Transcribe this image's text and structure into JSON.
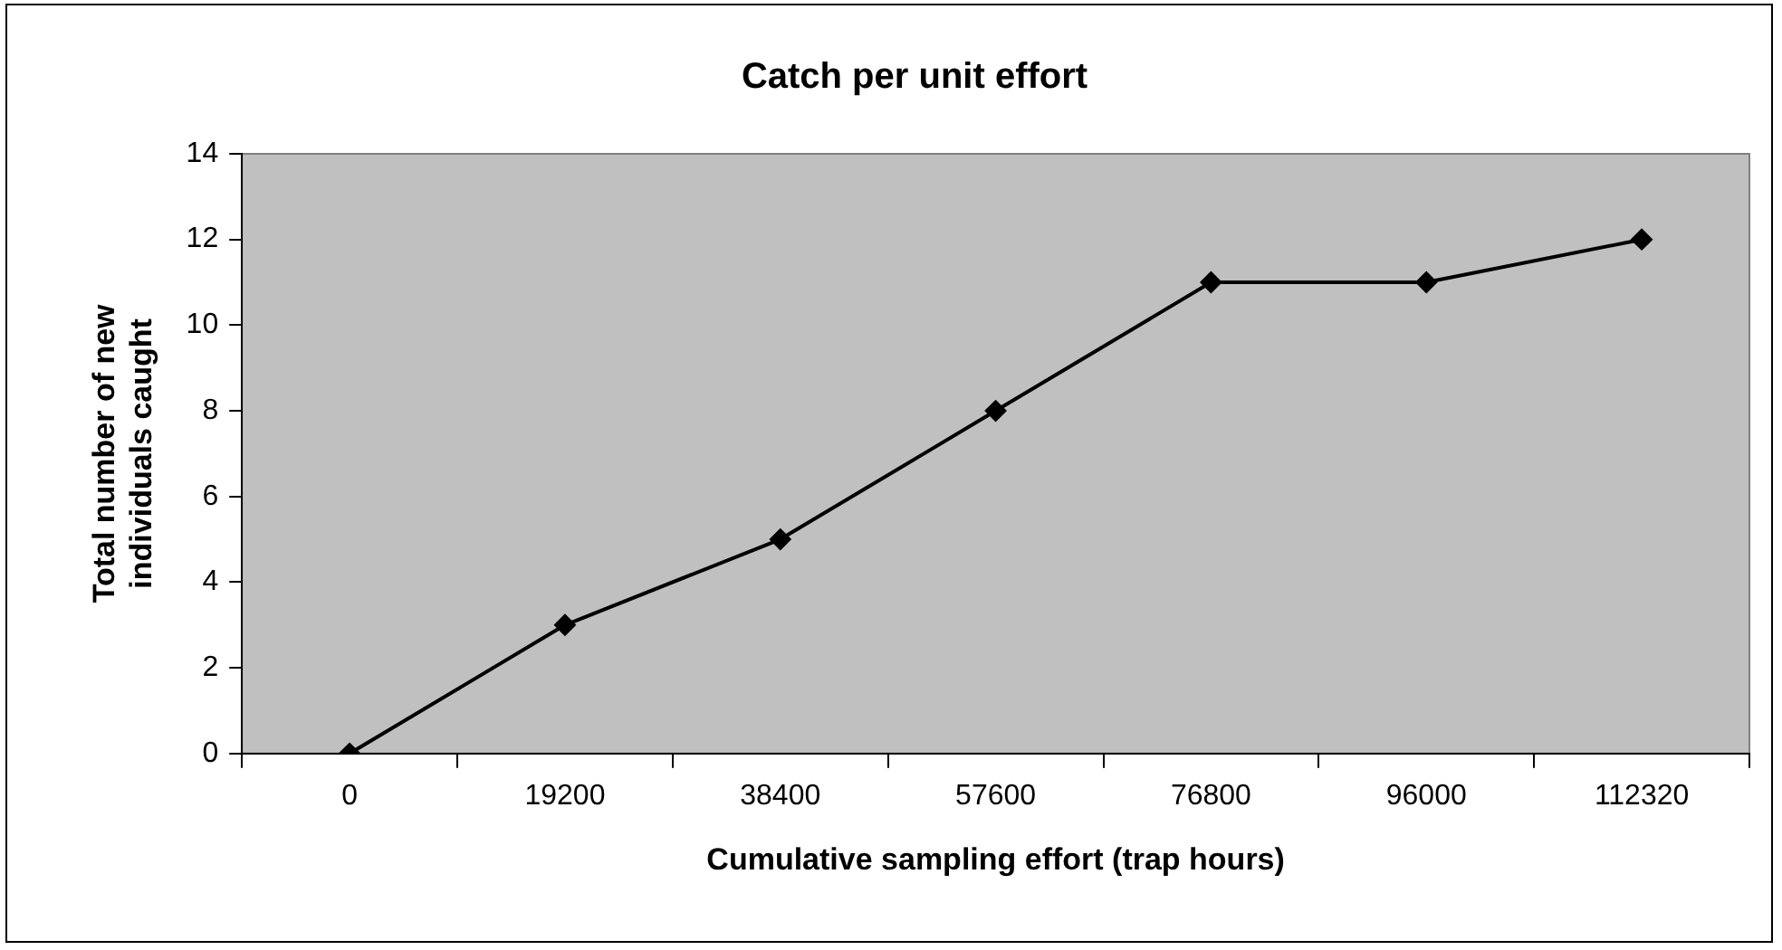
{
  "chart_data": {
    "type": "line",
    "title": "Catch per unit effort",
    "xlabel": "Cumulative sampling effort (trap hours)",
    "ylabel": "Total number of new\nindividuals caught",
    "categories": [
      "0",
      "19200",
      "38400",
      "57600",
      "76800",
      "96000",
      "112320"
    ],
    "series": [
      {
        "color": "#000000",
        "values": [
          0,
          3,
          5,
          8,
          11,
          11,
          12
        ]
      }
    ],
    "ylim": [
      0,
      14
    ],
    "yticks": [
      0,
      2,
      4,
      6,
      8,
      10,
      12,
      14
    ],
    "grid": false,
    "legend": false,
    "marker": "diamond",
    "line_style": "solid"
  }
}
